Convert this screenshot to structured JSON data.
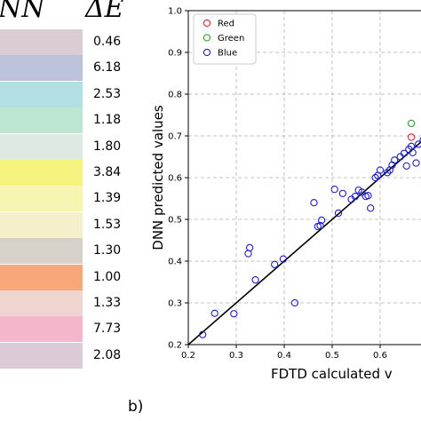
{
  "table": {
    "header_nn": "NN",
    "header_delta": "ΔE",
    "rows": [
      {
        "color": "#dbcbd3",
        "delta_e": "0.46"
      },
      {
        "color": "#bcc2da",
        "delta_e": "6.18"
      },
      {
        "color": "#b2e0e2",
        "delta_e": "2.53"
      },
      {
        "color": "#bde6d2",
        "delta_e": "1.18"
      },
      {
        "color": "#dde9e1",
        "delta_e": "1.80"
      },
      {
        "color": "#f6f47f",
        "delta_e": "3.84"
      },
      {
        "color": "#f7f5b2",
        "delta_e": "1.39"
      },
      {
        "color": "#f6f0ca",
        "delta_e": "1.53"
      },
      {
        "color": "#d6d2ca",
        "delta_e": "1.30"
      },
      {
        "color": "#f8a77b",
        "delta_e": "1.00"
      },
      {
        "color": "#efd5d0",
        "delta_e": "1.33"
      },
      {
        "color": "#f4b6cb",
        "delta_e": "7.73"
      },
      {
        "color": "#dacbd6",
        "delta_e": "2.08"
      }
    ]
  },
  "panel_label": "b)",
  "chart_data": {
    "type": "scatter",
    "xlabel": "FDTD calculated v",
    "ylabel": "DNN predicted values",
    "xlim": [
      0.2,
      0.7
    ],
    "ylim": [
      0.2,
      1.0
    ],
    "xticks": [
      "0.2",
      "0.3",
      "0.4",
      "0.5",
      "0.6"
    ],
    "yticks": [
      "0.2",
      "0.3",
      "0.4",
      "0.5",
      "0.6",
      "0.7",
      "0.8",
      "0.9",
      "1.0"
    ],
    "grid": true,
    "legend_position": "top-left",
    "reference_line": {
      "x": [
        0.2,
        0.7
      ],
      "y": [
        0.2,
        0.7
      ]
    },
    "series": [
      {
        "name": "Red",
        "color": "#d62728",
        "points": [
          [
            0.665,
            0.697
          ]
        ]
      },
      {
        "name": "Green",
        "color": "#2ca02c",
        "points": [
          [
            0.665,
            0.73
          ]
        ]
      },
      {
        "name": "Blue",
        "color": "#1f1fc4",
        "points": [
          [
            0.23,
            0.224
          ],
          [
            0.255,
            0.275
          ],
          [
            0.295,
            0.274
          ],
          [
            0.325,
            0.418
          ],
          [
            0.328,
            0.432
          ],
          [
            0.34,
            0.355
          ],
          [
            0.38,
            0.392
          ],
          [
            0.398,
            0.405
          ],
          [
            0.422,
            0.3
          ],
          [
            0.462,
            0.54
          ],
          [
            0.47,
            0.483
          ],
          [
            0.475,
            0.485
          ],
          [
            0.478,
            0.498
          ],
          [
            0.505,
            0.572
          ],
          [
            0.513,
            0.515
          ],
          [
            0.522,
            0.562
          ],
          [
            0.54,
            0.548
          ],
          [
            0.548,
            0.555
          ],
          [
            0.555,
            0.57
          ],
          [
            0.562,
            0.565
          ],
          [
            0.57,
            0.555
          ],
          [
            0.575,
            0.557
          ],
          [
            0.58,
            0.527
          ],
          [
            0.59,
            0.6
          ],
          [
            0.595,
            0.605
          ],
          [
            0.6,
            0.618
          ],
          [
            0.615,
            0.612
          ],
          [
            0.62,
            0.618
          ],
          [
            0.625,
            0.63
          ],
          [
            0.63,
            0.642
          ],
          [
            0.642,
            0.65
          ],
          [
            0.65,
            0.658
          ],
          [
            0.655,
            0.628
          ],
          [
            0.66,
            0.668
          ],
          [
            0.665,
            0.675
          ],
          [
            0.668,
            0.66
          ],
          [
            0.675,
            0.635
          ],
          [
            0.68,
            0.68
          ],
          [
            0.69,
            0.69
          ]
        ]
      }
    ]
  }
}
